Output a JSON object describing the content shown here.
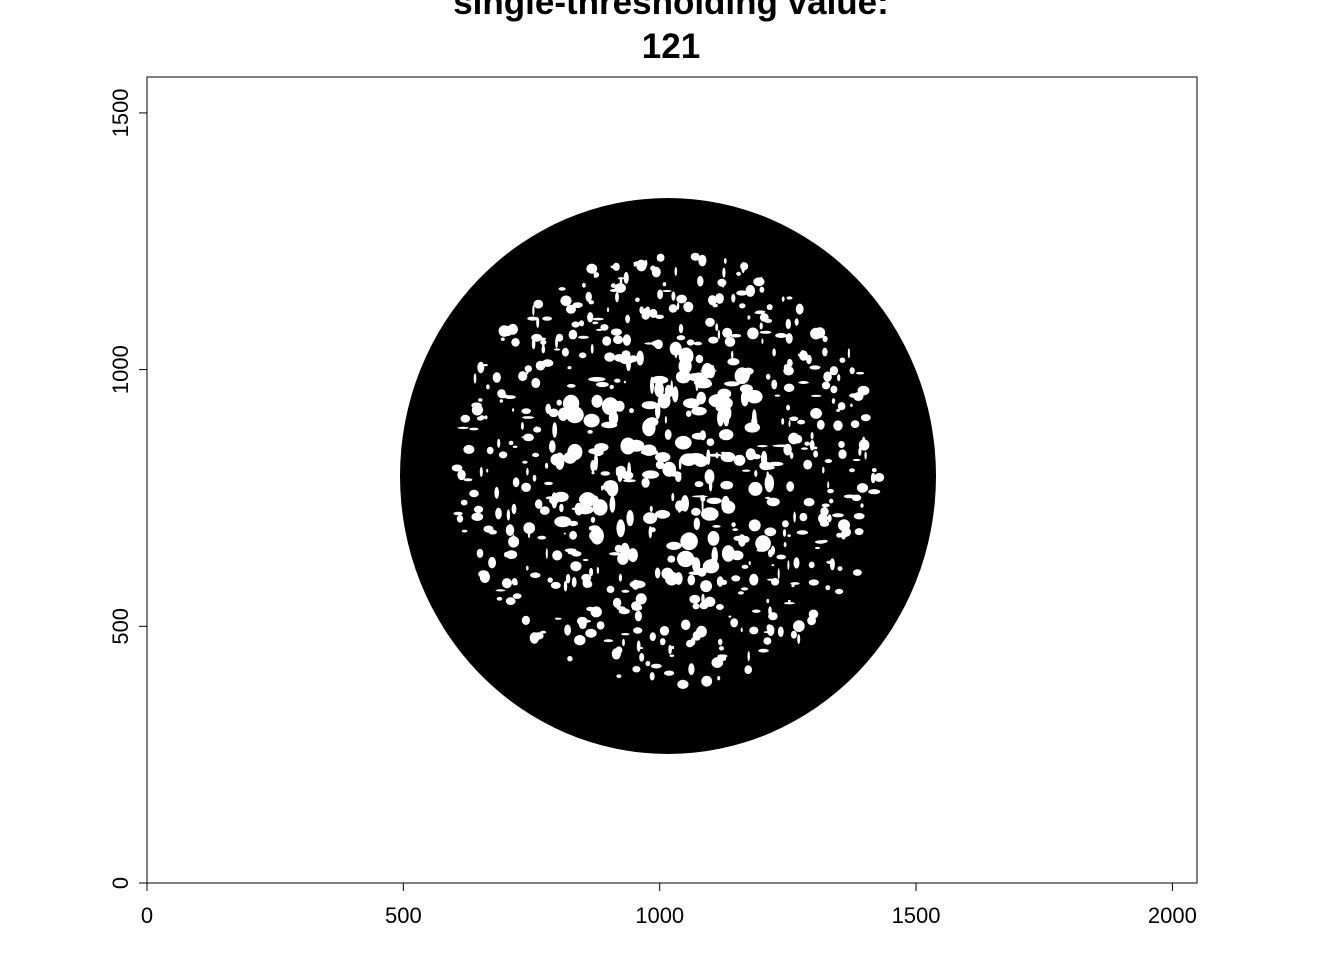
{
  "chart_data": {
    "type": "image",
    "title": "single-thresholding value:",
    "subtitle": "121",
    "xlim": [
      0,
      2048
    ],
    "ylim": [
      0,
      1570
    ],
    "xticks": [
      0,
      500,
      1000,
      1500,
      2000
    ],
    "yticks": [
      0,
      500,
      1000,
      1500
    ]
  }
}
